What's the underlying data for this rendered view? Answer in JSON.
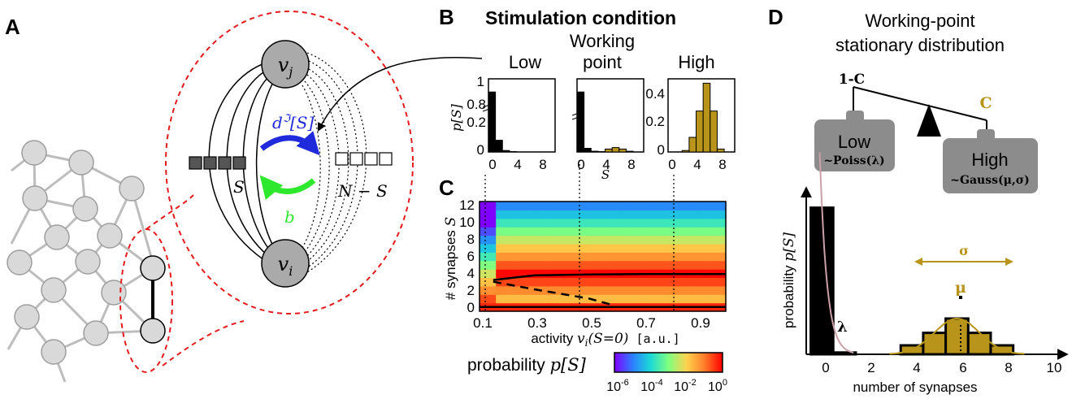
{
  "colors": {
    "node_fill": "#d9d9d9",
    "node_stroke": "#9e9e9e",
    "red_dash": "#e41a1c",
    "blue_arrow": "#1f2bdb",
    "green_arrow": "#2ee82e",
    "gold": "#b8951a",
    "dark_gray": "#8c8c8c",
    "pink_curve": "#c9a0a8"
  },
  "panels": {
    "a": "A",
    "b": "B",
    "c": "C",
    "d": "D"
  },
  "panel_a": {
    "node_top": "vj",
    "node_bottom": "vi",
    "label_S": "S",
    "label_NminusS": "N − S",
    "rate_potentiation": "d[S]",
    "rate_decay": "b"
  },
  "panel_b": {
    "title": "Stimulation condition",
    "conditions": [
      "Low",
      "Working point",
      "High"
    ],
    "ylabel": "p[S]",
    "xlabel": "S",
    "low": {
      "yticks": [
        "1",
        "0.8",
        "0.2",
        "0"
      ],
      "xticks": [
        "0",
        "4",
        "8"
      ]
    },
    "working": {
      "xticks": [
        "0",
        "4",
        "8"
      ]
    },
    "high": {
      "yticks": [
        "0.4",
        "0.2",
        "0"
      ],
      "xticks": [
        "0",
        "4",
        "8"
      ]
    }
  },
  "chart_data": [
    {
      "type": "bar",
      "name": "Low",
      "x": [
        0,
        1,
        2,
        3
      ],
      "values": [
        0.82,
        0.16,
        0.02,
        0.005
      ],
      "ylim": [
        0,
        1
      ],
      "xlim": [
        -0.5,
        9
      ]
    },
    {
      "type": "bar",
      "name": "Working point",
      "x": [
        0,
        1,
        2,
        3,
        4,
        5,
        6,
        7
      ],
      "values": [
        0.82,
        0.05,
        0.01,
        0.005,
        0.04,
        0.06,
        0.04,
        0.01
      ],
      "ylim": [
        0,
        1
      ],
      "xlim": [
        -0.5,
        9
      ]
    },
    {
      "type": "bar",
      "name": "High",
      "x": [
        2,
        3,
        4,
        5,
        6,
        7
      ],
      "values": [
        0.01,
        0.1,
        0.28,
        0.47,
        0.28,
        0.02
      ],
      "ylim": [
        0,
        0.5
      ],
      "xlim": [
        -0.5,
        9
      ]
    },
    {
      "type": "heatmap",
      "xlabel": "activity vi(S=0) [a.u.]",
      "ylabel": "# synapses S",
      "xticks": [
        "0.1",
        "0.3",
        "0.5",
        "0.7",
        "0.9"
      ],
      "yticks": [
        "0",
        "2",
        "4",
        "6",
        "8",
        "10",
        "12"
      ],
      "xlim": [
        0.1,
        1.0
      ],
      "ylim": [
        -0.5,
        12.5
      ],
      "colorbar_label": "probability p[S]",
      "colorbar_ticks": [
        "10-6",
        "10-4",
        "10-2",
        "100"
      ],
      "stable_branch_upper": [
        [
          0.15,
          3.2
        ],
        [
          0.3,
          3.75
        ],
        [
          0.5,
          3.85
        ],
        [
          0.7,
          3.9
        ],
        [
          1.0,
          3.9
        ]
      ],
      "unstable_branch": [
        [
          0.15,
          3.0
        ],
        [
          0.3,
          2.1
        ],
        [
          0.5,
          1.0
        ],
        [
          0.59,
          0.2
        ]
      ],
      "stable_branch_lower": [
        [
          0.1,
          0.0
        ],
        [
          1.0,
          0.0
        ]
      ],
      "vertical_markers": [
        0.12,
        0.47,
        0.8
      ]
    },
    {
      "type": "bar",
      "name": "Working-point stationary distribution",
      "xlabel": "number of synapses",
      "ylabel": "probability p[S]",
      "xticks": [
        "0",
        "2",
        "4",
        "6",
        "8",
        "10"
      ],
      "x": [
        0,
        1,
        4,
        5,
        6,
        7,
        8
      ],
      "values": [
        0.82,
        0.01,
        0.05,
        0.12,
        0.2,
        0.12,
        0.05
      ],
      "xlim": [
        -0.7,
        10.5
      ]
    }
  ],
  "panel_d": {
    "title_line1": "Working-point",
    "title_line2": "stationary distribution",
    "weight_left": "1-C",
    "weight_right": "C",
    "box_low": "Low",
    "box_low_sub": "~Poiss(λ)",
    "box_high": "High",
    "box_high_sub": "~Gauss(μ,σ)",
    "lambda": "λ",
    "mu": "μ",
    "sigma": "σ"
  }
}
